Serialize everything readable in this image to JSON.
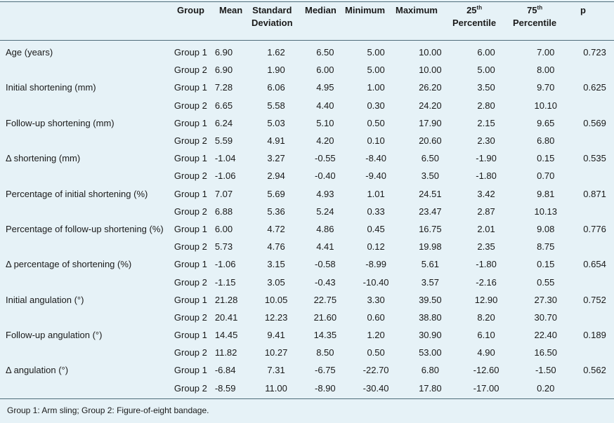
{
  "header": {
    "group": "Group",
    "mean": "Mean",
    "sd_line1": "Standard",
    "sd_line2": "Deviation",
    "median": "Median",
    "minimum": "Minimum",
    "maximum": "Maximum",
    "p25_num": "25",
    "p25_sup": "th",
    "p25_word": "Percentile",
    "p75_num": "75",
    "p75_sup": "th",
    "p75_word": "Percentile",
    "p": "p"
  },
  "rows": [
    {
      "label": "Age (years)",
      "p": "0.723",
      "g1": [
        "Group 1",
        "6.90",
        "1.62",
        "6.50",
        "5.00",
        "10.00",
        "6.00",
        "7.00"
      ],
      "g2": [
        "Group 2",
        "6.90",
        "1.90",
        "6.00",
        "5.00",
        "10.00",
        "5.00",
        "8.00"
      ]
    },
    {
      "label": "Initial shortening (mm)",
      "p": "0.625",
      "g1": [
        "Group 1",
        "7.28",
        "6.06",
        "4.95",
        "1.00",
        "26.20",
        "3.50",
        "9.70"
      ],
      "g2": [
        "Group 2",
        "6.65",
        "5.58",
        "4.40",
        "0.30",
        "24.20",
        "2.80",
        "10.10"
      ]
    },
    {
      "label": "Follow-up shortening (mm)",
      "p": "0.569",
      "g1": [
        "Group 1",
        "6.24",
        "5.03",
        "5.10",
        "0.50",
        "17.90",
        "2.15",
        "9.65"
      ],
      "g2": [
        "Group 2",
        "5.59",
        "4.91",
        "4.20",
        "0.10",
        "20.60",
        "2.30",
        "6.80"
      ]
    },
    {
      "label": "Δ shortening (mm)",
      "p": "0.535",
      "g1": [
        "Group 1",
        "-1.04",
        "3.27",
        "-0.55",
        "-8.40",
        "6.50",
        "-1.90",
        "0.15"
      ],
      "g2": [
        "Group 2",
        "-1.06",
        "2.94",
        "-0.40",
        "-9.40",
        "3.50",
        "-1.80",
        "0.70"
      ]
    },
    {
      "label": "Percentage of initial shortening (%)",
      "p": "0.871",
      "g1": [
        "Group 1",
        "7.07",
        "5.69",
        "4.93",
        "1.01",
        "24.51",
        "3.42",
        "9.81"
      ],
      "g2": [
        "Group 2",
        "6.88",
        "5.36",
        "5.24",
        "0.33",
        "23.47",
        "2.87",
        "10.13"
      ]
    },
    {
      "label": "Percentage of follow-up shortening (%)",
      "p": "0.776",
      "g1": [
        "Group 1",
        "6.00",
        "4.72",
        "4.86",
        "0.45",
        "16.75",
        "2.01",
        "9.08"
      ],
      "g2": [
        "Group 2",
        "5.73",
        "4.76",
        "4.41",
        "0.12",
        "19.98",
        "2.35",
        "8.75"
      ]
    },
    {
      "label": "Δ percentage of shortening (%)",
      "p": "0.654",
      "g1": [
        "Group 1",
        "-1.06",
        "3.15",
        "-0.58",
        "-8.99",
        "5.61",
        "-1.80",
        "0.15"
      ],
      "g2": [
        "Group 2",
        "-1.15",
        "3.05",
        "-0.43",
        "-10.40",
        "3.57",
        "-2.16",
        "0.55"
      ]
    },
    {
      "label": "Initial angulation (°)",
      "p": "0.752",
      "g1": [
        "Group 1",
        "21.28",
        "10.05",
        "22.75",
        "3.30",
        "39.50",
        "12.90",
        "27.30"
      ],
      "g2": [
        "Group 2",
        "20.41",
        "12.23",
        "21.60",
        "0.60",
        "38.80",
        "8.20",
        "30.70"
      ]
    },
    {
      "label": "Follow-up angulation (°)",
      "p": "0.189",
      "g1": [
        "Group 1",
        "14.45",
        "9.41",
        "14.35",
        "1.20",
        "30.90",
        "6.10",
        "22.40"
      ],
      "g2": [
        "Group 2",
        "11.82",
        "10.27",
        "8.50",
        "0.50",
        "53.00",
        "4.90",
        "16.50"
      ]
    },
    {
      "label": "Δ angulation (°)",
      "p": "0.562",
      "g1": [
        "Group 1",
        "-6.84",
        "7.31",
        "-6.75",
        "-22.70",
        "6.80",
        "-12.60",
        "-1.50"
      ],
      "g2": [
        "Group 2",
        "-8.59",
        "11.00",
        "-8.90",
        "-30.40",
        "17.80",
        "-17.00",
        "0.20"
      ]
    }
  ],
  "footnote": "Group 1: Arm sling; Group 2: Figure-of-eight bandage."
}
